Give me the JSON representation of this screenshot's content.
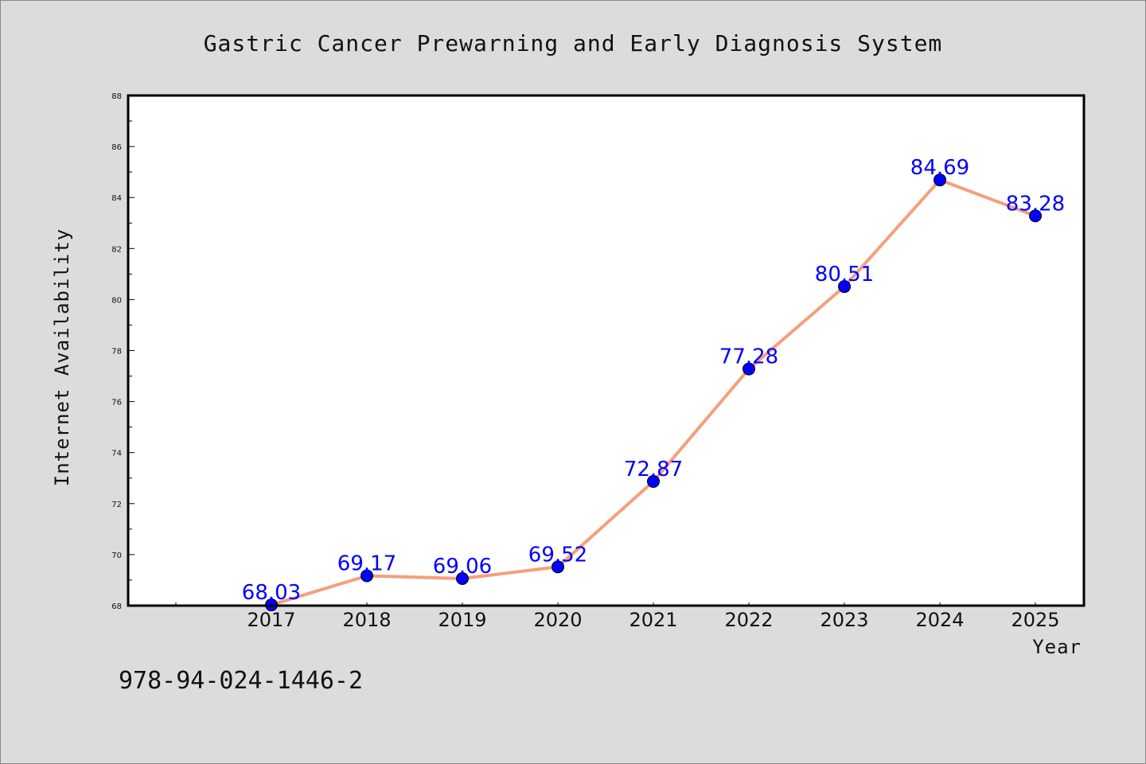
{
  "chart_data": {
    "type": "line",
    "title": "Gastric Cancer Prewarning and Early Diagnosis System",
    "xlabel": "Year",
    "ylabel": "Internet Availability",
    "x": [
      "2017",
      "2018",
      "2019",
      "2020",
      "2021",
      "2022",
      "2023",
      "2024",
      "2025"
    ],
    "series": [
      {
        "values": [
          68.03,
          69.17,
          69.06,
          69.52,
          72.87,
          77.28,
          80.51,
          84.69,
          83.28
        ],
        "line_color": "#f4a07a",
        "marker_color": "#0000ff"
      }
    ],
    "data_labels": [
      "68.03",
      "69.17",
      "69.06",
      "69.52",
      "72.87",
      "77.28",
      "80.51",
      "84.69",
      "83.28"
    ],
    "ylim": [
      68,
      88
    ],
    "yticks": [
      "68",
      "70",
      "72",
      "74",
      "76",
      "78",
      "80",
      "82",
      "84",
      "86",
      "88"
    ],
    "grid": false,
    "legend": "none"
  },
  "footer_text": "978-94-024-1446-2",
  "colors": {
    "background": "#dcdcdc",
    "plot_background": "#ffffff",
    "line": "#f4a07a",
    "marker": "#0000ff",
    "data_label": "#0000ff"
  }
}
